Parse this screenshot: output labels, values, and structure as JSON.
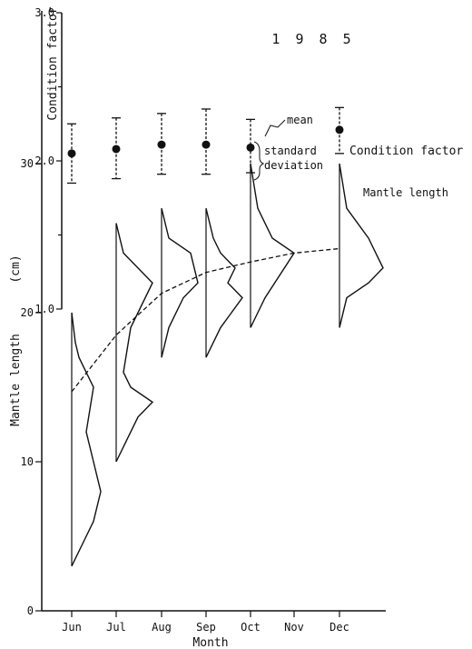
{
  "chart_data": {
    "type": "line",
    "title": "1 9 8 5",
    "xlabel": "Month",
    "ylabel": "Mantle length",
    "ylabel_unit": "(cm)",
    "y2label": "Condition factor",
    "categories": [
      "Jun",
      "Jul",
      "Aug",
      "Sep",
      "Oct",
      "Nov",
      "Dec"
    ],
    "ylim": [
      0,
      30
    ],
    "yticks": [
      "0",
      "10",
      "20",
      "30"
    ],
    "y2lim": [
      1.0,
      3.0
    ],
    "y2ticks": [
      "1.0",
      "2.0",
      "3.0"
    ],
    "legend": {
      "mean": "mean",
      "sd": "standard deviation",
      "cf": "Condition factor",
      "ml": "Mantle length"
    },
    "condition_factor": {
      "months": [
        "Jun",
        "Jul",
        "Aug",
        "Sep",
        "Oct",
        "Dec"
      ],
      "mean": [
        2.05,
        2.08,
        2.11,
        2.11,
        2.09,
        2.21
      ],
      "sd_low": [
        1.85,
        1.88,
        1.91,
        1.91,
        1.92,
        2.05
      ],
      "sd_high": [
        2.25,
        2.29,
        2.32,
        2.35,
        2.28,
        2.36
      ]
    },
    "mean_length_curve": {
      "x": [
        "Jun",
        "Jul",
        "Aug",
        "Sep",
        "Oct",
        "Nov",
        "Dec"
      ],
      "y": [
        14.7,
        18.5,
        21.3,
        22.7,
        23.4,
        24.0,
        24.3
      ]
    },
    "length_frequency": [
      {
        "month": "Jun",
        "points": [
          [
            0,
            20
          ],
          [
            0.5,
            18
          ],
          [
            1,
            17
          ],
          [
            3,
            15
          ],
          [
            2,
            12
          ],
          [
            4,
            8
          ],
          [
            3,
            6
          ],
          [
            2,
            5
          ],
          [
            0,
            3
          ]
        ]
      },
      {
        "month": "Jul",
        "points": [
          [
            0,
            26
          ],
          [
            1,
            24
          ],
          [
            5,
            22
          ],
          [
            2,
            19
          ],
          [
            1,
            16
          ],
          [
            2,
            15
          ],
          [
            5,
            14
          ],
          [
            3,
            13
          ],
          [
            1,
            11
          ],
          [
            0,
            10
          ]
        ]
      },
      {
        "month": "Aug",
        "points": [
          [
            0,
            27
          ],
          [
            1,
            25
          ],
          [
            4,
            24
          ],
          [
            5,
            22
          ],
          [
            3,
            21
          ],
          [
            1,
            19
          ],
          [
            0,
            17
          ]
        ]
      },
      {
        "month": "Sep",
        "points": [
          [
            0,
            27
          ],
          [
            1,
            25
          ],
          [
            2,
            24
          ],
          [
            4,
            23
          ],
          [
            3,
            22
          ],
          [
            5,
            21
          ],
          [
            2,
            19
          ],
          [
            0,
            17
          ]
        ]
      },
      {
        "month": "Oct",
        "points": [
          [
            0,
            30
          ],
          [
            1,
            27
          ],
          [
            3,
            25
          ],
          [
            6,
            24
          ],
          [
            2,
            21
          ],
          [
            1,
            20
          ],
          [
            0,
            19
          ]
        ]
      },
      {
        "month": "Dec",
        "points": [
          [
            0,
            30
          ],
          [
            1,
            27
          ],
          [
            4,
            25
          ],
          [
            5,
            24
          ],
          [
            6,
            23
          ],
          [
            4,
            22
          ],
          [
            1,
            21
          ],
          [
            0,
            19
          ]
        ]
      }
    ]
  }
}
